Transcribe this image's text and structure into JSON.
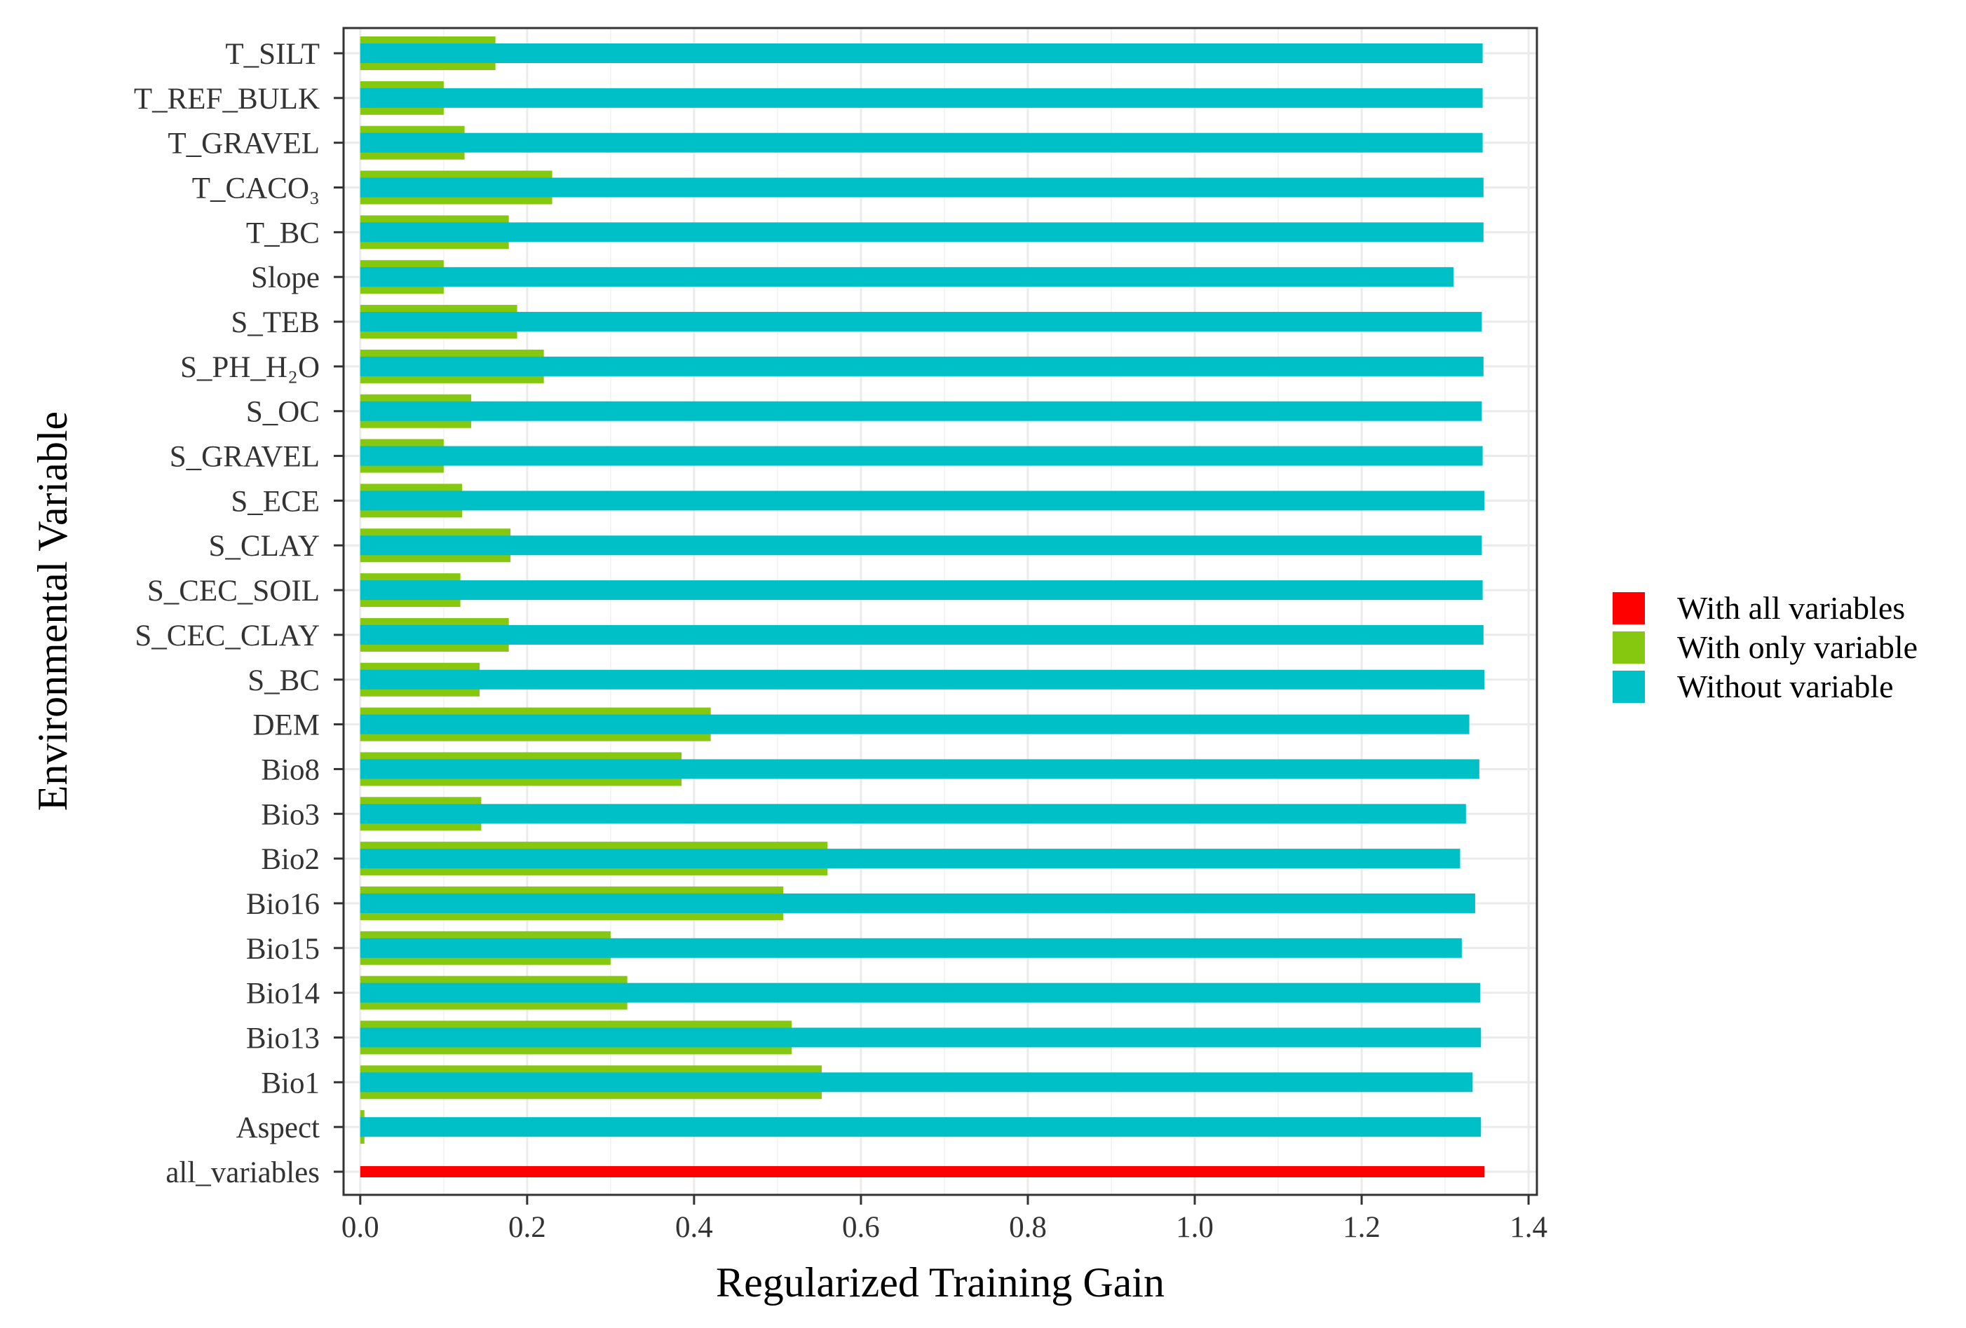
{
  "chart_data": {
    "type": "bar",
    "orientation": "horizontal",
    "title": "",
    "xlabel": "Regularized Training Gain",
    "ylabel": "Environmental Variable",
    "xlim": [
      -0.02,
      1.41
    ],
    "xticks": [
      "0.0",
      "0.2",
      "0.4",
      "0.6",
      "0.8",
      "1.0",
      "1.2",
      "1.4"
    ],
    "xtick_values": [
      0,
      0.2,
      0.4,
      0.6,
      0.8,
      1.0,
      1.2,
      1.4
    ],
    "grid": true,
    "legend_position": "right",
    "categories": [
      "all_variables",
      "Aspect",
      "Bio1",
      "Bio13",
      "Bio14",
      "Bio15",
      "Bio16",
      "Bio2",
      "Bio3",
      "Bio8",
      "DEM",
      "S_BC",
      "S_CEC_CLAY",
      "S_CEC_SOIL",
      "S_CLAY",
      "S_ECE",
      "S_GRAVEL",
      "S_OC",
      "S_PH_H₂O",
      "S_TEB",
      "Slope",
      "T_BC",
      "T_CACO₃",
      "T_GRAVEL",
      "T_REF_BULK",
      "T_SILT"
    ],
    "series": [
      {
        "name": "With all variables",
        "color": "#ff0000",
        "values": [
          1.347,
          null,
          null,
          null,
          null,
          null,
          null,
          null,
          null,
          null,
          null,
          null,
          null,
          null,
          null,
          null,
          null,
          null,
          null,
          null,
          null,
          null,
          null,
          null,
          null,
          null
        ]
      },
      {
        "name": "With only variable",
        "color": "#86c70f",
        "values": [
          null,
          0.005,
          0.553,
          0.517,
          0.32,
          0.3,
          0.507,
          0.56,
          0.145,
          0.385,
          0.42,
          0.143,
          0.178,
          0.12,
          0.18,
          0.122,
          0.1,
          0.133,
          0.22,
          0.188,
          0.1,
          0.178,
          0.23,
          0.125,
          0.1,
          0.162
        ]
      },
      {
        "name": "Without variable",
        "color": "#00c0c7",
        "values": [
          null,
          1.343,
          1.333,
          1.343,
          1.342,
          1.32,
          1.336,
          1.318,
          1.325,
          1.341,
          1.329,
          1.347,
          1.346,
          1.345,
          1.344,
          1.347,
          1.345,
          1.344,
          1.346,
          1.344,
          1.31,
          1.346,
          1.346,
          1.345,
          1.345,
          1.345
        ]
      }
    ]
  }
}
